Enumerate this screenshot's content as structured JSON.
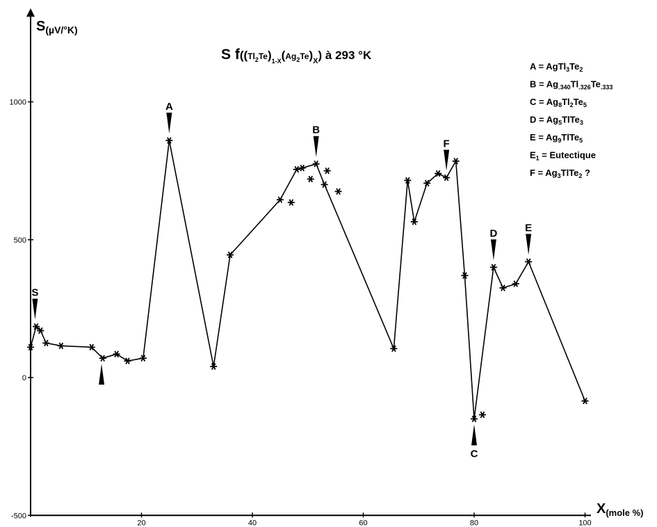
{
  "chart_data": {
    "type": "line",
    "title": "S f((Tl2Te)1-X(Ag2Te)X) à 293 °K",
    "ylabel": "S(µV/°K)",
    "xlabel": "X(mole %)",
    "xlim": [
      0,
      100
    ],
    "ylim": [
      -500,
      1000
    ],
    "x_ticks": [
      20,
      40,
      60,
      80,
      100
    ],
    "y_ticks": [
      -500,
      0,
      500,
      1000
    ],
    "grid": false,
    "series": [
      {
        "values": [
          [
            0,
            110
          ],
          [
            1,
            185
          ],
          [
            1.8,
            170
          ],
          [
            2.8,
            125
          ],
          [
            5.5,
            115
          ],
          [
            11,
            110
          ],
          [
            13,
            70
          ],
          [
            15.5,
            85
          ],
          [
            17.5,
            60
          ],
          [
            20.3,
            70
          ],
          [
            25,
            860
          ],
          [
            33,
            40
          ],
          [
            36,
            445
          ],
          [
            45,
            645
          ],
          [
            48,
            755
          ],
          [
            49,
            760
          ],
          [
            51.5,
            775
          ],
          [
            53,
            700
          ],
          [
            65.5,
            105
          ],
          [
            68,
            715
          ],
          [
            69.2,
            565
          ],
          [
            71.5,
            705
          ],
          [
            73.5,
            740
          ],
          [
            75,
            725
          ],
          [
            76.7,
            785
          ],
          [
            78.3,
            370
          ],
          [
            80,
            -150
          ],
          [
            83.5,
            400
          ],
          [
            85.2,
            325
          ],
          [
            87.5,
            340
          ],
          [
            89.8,
            420
          ],
          [
            100,
            -85
          ]
        ]
      },
      {
        "values": [
          [
            47,
            635
          ],
          [
            50.5,
            720
          ],
          [
            53.5,
            750
          ],
          [
            55.5,
            675
          ],
          [
            81.5,
            -135
          ]
        ]
      }
    ],
    "point_labels": [
      {
        "text": "S",
        "x": 0.8,
        "at_y": 185,
        "side": "above"
      },
      {
        "text": "",
        "x": 12.8,
        "at_y": 70,
        "side": "below"
      },
      {
        "text": "A",
        "x": 25,
        "at_y": 860,
        "side": "above"
      },
      {
        "text": "B",
        "x": 51.5,
        "at_y": 775,
        "side": "above"
      },
      {
        "text": "F",
        "x": 75,
        "at_y": 725,
        "side": "above"
      },
      {
        "text": "C",
        "x": 80,
        "at_y": -150,
        "side": "below"
      },
      {
        "text": "D",
        "x": 83.5,
        "at_y": 400,
        "side": "above"
      },
      {
        "text": "E",
        "x": 89.8,
        "at_y": 420,
        "side": "above"
      }
    ],
    "legend": [
      {
        "key": "A",
        "parts": [
          [
            "",
            "AgTl"
          ],
          [
            "sub",
            "3"
          ],
          [
            "",
            "Te"
          ],
          [
            "sub",
            "2"
          ]
        ]
      },
      {
        "key": "B",
        "parts": [
          [
            "",
            "Ag"
          ],
          [
            "sub",
            ".340"
          ],
          [
            "",
            "Tl"
          ],
          [
            "sub",
            ".326"
          ],
          [
            "",
            "Te"
          ],
          [
            "sub",
            ".333"
          ]
        ]
      },
      {
        "key": "C",
        "parts": [
          [
            "",
            "Ag"
          ],
          [
            "sub",
            "8"
          ],
          [
            "",
            "Tl"
          ],
          [
            "sub",
            "2"
          ],
          [
            "",
            "Te"
          ],
          [
            "sub",
            "5"
          ]
        ]
      },
      {
        "key": "D",
        "parts": [
          [
            "",
            "Ag"
          ],
          [
            "sub",
            "5"
          ],
          [
            "",
            "TlTe"
          ],
          [
            "sub",
            "3"
          ]
        ]
      },
      {
        "key": "E",
        "parts": [
          [
            "",
            "Ag"
          ],
          [
            "sub",
            "9"
          ],
          [
            "",
            "TlTe"
          ],
          [
            "sub",
            "5"
          ]
        ]
      },
      {
        "key": "E1",
        "parts": [
          [
            "",
            "Eutectique"
          ]
        ]
      },
      {
        "key": "F",
        "parts": [
          [
            "",
            "Ag"
          ],
          [
            "sub",
            "3"
          ],
          [
            "",
            "TlTe"
          ],
          [
            "sub",
            "2"
          ],
          [
            "",
            " ?"
          ]
        ]
      }
    ]
  }
}
